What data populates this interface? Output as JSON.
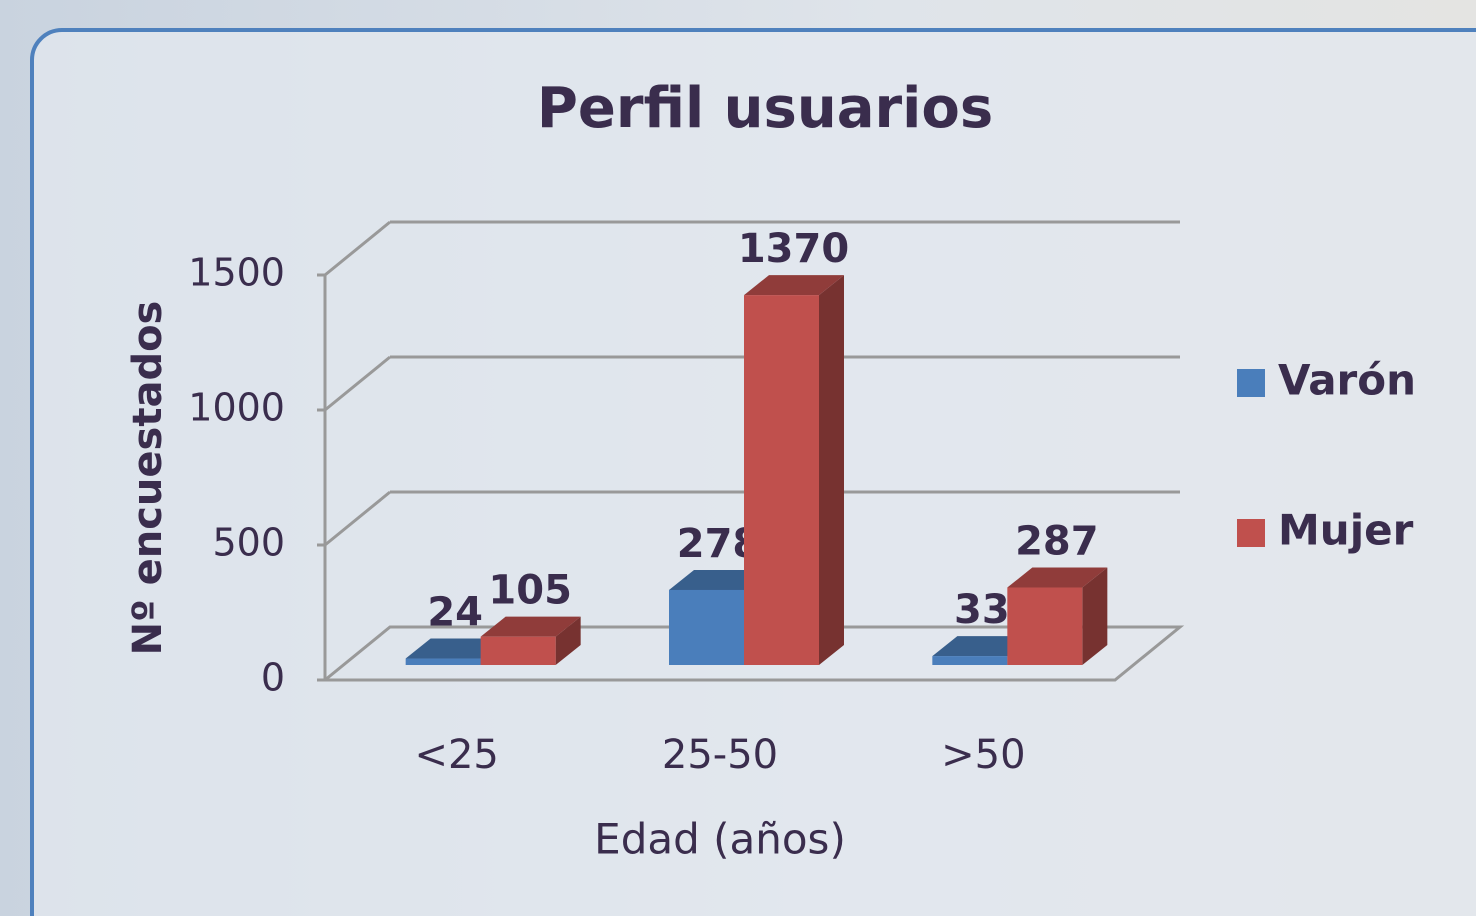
{
  "chart_data": {
    "type": "bar3d",
    "title": "Perfil usuarios",
    "x_label": "Edad (años)",
    "y_label": "Nº encuestados",
    "categories": [
      "<25",
      "25-50",
      ">50"
    ],
    "series": [
      {
        "name": "Varón",
        "color": "#4a7ebb",
        "values": [
          24,
          278,
          33
        ]
      },
      {
        "name": "Mujer",
        "color": "#c0504d",
        "values": [
          105,
          1370,
          287
        ]
      }
    ],
    "ylim": [
      0,
      1500
    ],
    "yticks": [
      0,
      500,
      1000,
      1500
    ],
    "grid": true,
    "legend": "right"
  }
}
